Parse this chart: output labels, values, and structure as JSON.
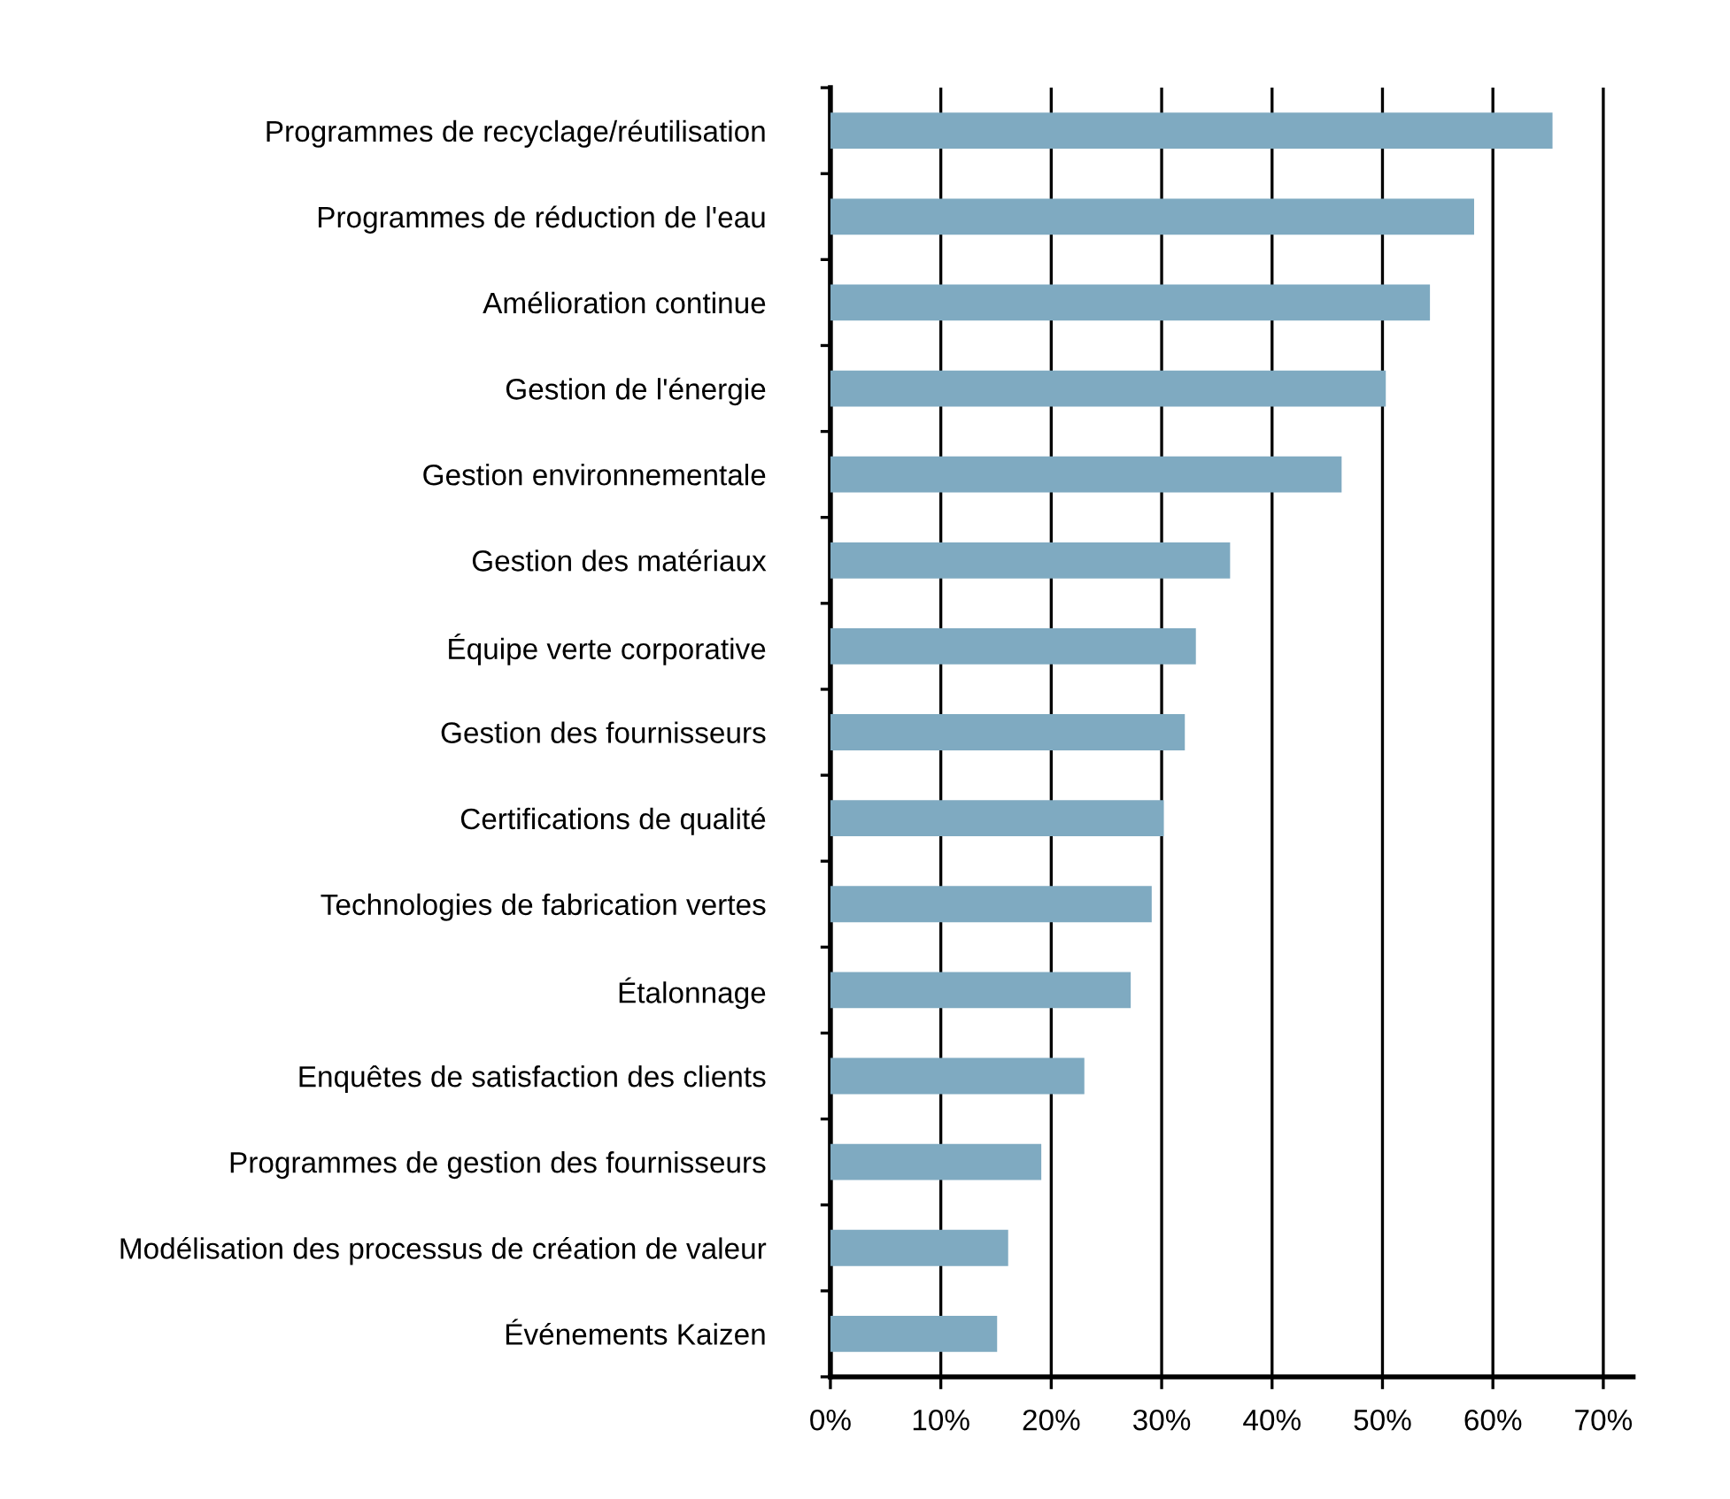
{
  "chart_data": {
    "type": "bar",
    "orientation": "horizontal",
    "categories": [
      "Programmes de recyclage/réutilisation",
      "Programmes de réduction de l'eau",
      "Amélioration continue",
      "Gestion de l'énergie",
      "Gestion environnementale",
      "Gestion des matériaux",
      "Équipe verte corporative",
      "Gestion des fournisseurs",
      "Certifications de qualité",
      "Technologies de fabrication vertes",
      "Étalonnage",
      "Enquêtes de satisfaction des clients",
      "Programmes de gestion des fournisseurs",
      "Modélisation des processus de création de valeur",
      "Événements Kaizen"
    ],
    "values": [
      65.4,
      58.3,
      54.3,
      50.3,
      46.3,
      36.2,
      33.1,
      32.1,
      30.2,
      29.1,
      27.2,
      23.0,
      19.1,
      16.1,
      15.1
    ],
    "color": "#7faac1",
    "xlim": [
      0,
      72.7
    ],
    "xticks": [
      {
        "value": 0,
        "label": "0%"
      },
      {
        "value": 10,
        "label": "10%"
      },
      {
        "value": 20,
        "label": "20%"
      },
      {
        "value": 30,
        "label": "30%"
      },
      {
        "value": 40,
        "label": "40%"
      },
      {
        "value": 50,
        "label": "50%"
      },
      {
        "value": 60,
        "label": "60%"
      },
      {
        "value": 70,
        "label": "70%"
      }
    ],
    "grid": "x"
  }
}
